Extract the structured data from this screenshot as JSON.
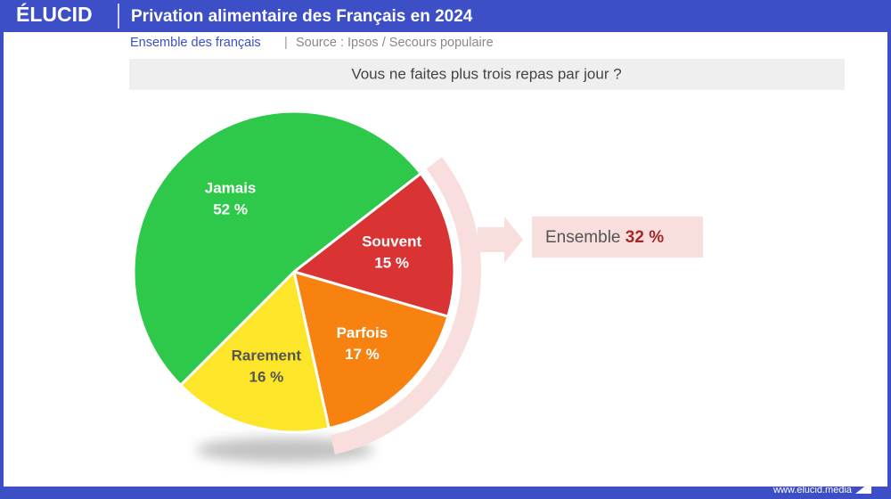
{
  "logo": "ÉLUCID",
  "footer": "www.elucid.media",
  "chart_data": {
    "type": "pie",
    "title": "Privation alimentaire des Français en 2024",
    "subtitle": "Ensemble des français",
    "source": "Source : Ipsos / Secours populaire",
    "question": "Vous ne faites plus trois repas par jour ?",
    "categories": [
      "Souvent",
      "Parfois",
      "Rarement",
      "Jamais"
    ],
    "values": [
      15,
      17,
      16,
      52
    ],
    "value_labels": [
      "15 %",
      "17 %",
      "16 %",
      "52 %"
    ],
    "colors": [
      "#d93333",
      "#f7820f",
      "#fde52a",
      "#2ec94a"
    ],
    "label_colors": [
      "#ffffff",
      "#ffffff",
      "#555555",
      "#ffffff"
    ],
    "annotation": {
      "label": "Ensemble",
      "value": 32,
      "value_label": "32 %"
    }
  }
}
